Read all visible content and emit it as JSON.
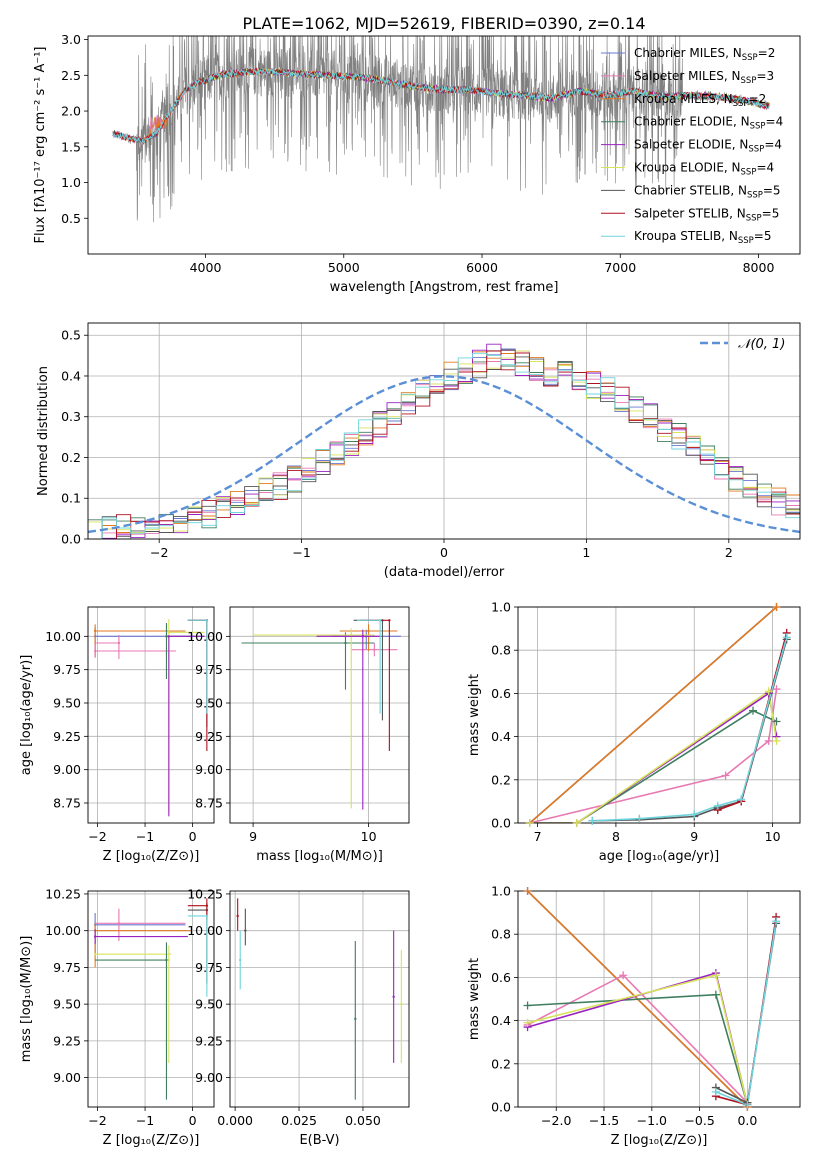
{
  "title": "PLATE=1062, MJD=52619, FIBERID=0390, z=0.14",
  "colors": {
    "chabrier_miles": "#6a78d0",
    "salpeter_miles": "#e879b2",
    "kroupa_miles": "#e07a1f",
    "chabrier_elodie": "#3f7f5f",
    "salpeter_elodie": "#9b22c2",
    "kroupa_elodie": "#d7e35a",
    "chabrier_stelib": "#555555",
    "salpeter_stelib": "#b01020",
    "kroupa_stelib": "#6fd3dc",
    "data": "#808080",
    "normal": "#5b8fd6"
  },
  "chart_data": [
    {
      "id": "spectrum",
      "type": "line",
      "xlabel": "wavelength [Angstrom, rest frame]",
      "ylabel": "Flux [fλ10⁻¹⁷ erg cm⁻² s⁻¹ A⁻¹]",
      "xlim": [
        3150,
        8300
      ],
      "ylim": [
        0,
        3.05
      ],
      "xticks": [
        4000,
        5000,
        6000,
        7000,
        8000
      ],
      "yticks": [
        0.5,
        1.0,
        1.5,
        2.0,
        2.5,
        3.0
      ],
      "legend_position": "top-right",
      "continuum": {
        "x": [
          3350,
          3450,
          3550,
          3650,
          3750,
          3850,
          3950,
          4100,
          4300,
          4500,
          4700,
          4900,
          5100,
          5300,
          5500,
          5700,
          5900,
          6100,
          6300,
          6500,
          6700,
          6900,
          7100,
          7300,
          7500,
          7700,
          7900,
          8050
        ],
        "y": [
          1.68,
          1.62,
          1.58,
          1.7,
          2.0,
          2.28,
          2.4,
          2.5,
          2.55,
          2.55,
          2.52,
          2.5,
          2.48,
          2.42,
          2.35,
          2.3,
          2.3,
          2.25,
          2.22,
          2.18,
          2.28,
          2.22,
          2.28,
          2.2,
          2.22,
          2.2,
          2.15,
          2.08
        ]
      },
      "legend": [
        {
          "label": "Chabrier MILES, N",
          "sub": "SSP",
          "n": "=2",
          "key": "chabrier_miles"
        },
        {
          "label": "Salpeter MILES, N",
          "sub": "SSP",
          "n": "=3",
          "key": "salpeter_miles"
        },
        {
          "label": "Kroupa MILES, N",
          "sub": "SSP",
          "n": "=2",
          "key": "kroupa_miles"
        },
        {
          "label": "Chabrier ELODIE, N",
          "sub": "SSP",
          "n": "=4",
          "key": "chabrier_elodie"
        },
        {
          "label": "Salpeter ELODIE, N",
          "sub": "SSP",
          "n": "=4",
          "key": "salpeter_elodie"
        },
        {
          "label": "Kroupa ELODIE, N",
          "sub": "SSP",
          "n": "=4",
          "key": "kroupa_elodie"
        },
        {
          "label": "Chabrier STELIB, N",
          "sub": "SSP",
          "n": "=5",
          "key": "chabrier_stelib"
        },
        {
          "label": "Salpeter STELIB, N",
          "sub": "SSP",
          "n": "=5",
          "key": "salpeter_stelib"
        },
        {
          "label": "Kroupa STELIB, N",
          "sub": "SSP",
          "n": "=5",
          "key": "kroupa_stelib"
        }
      ]
    },
    {
      "id": "residuals",
      "type": "line",
      "xlabel": "(data-model)/error",
      "ylabel": "Normed distribution",
      "xlim": [
        -2.5,
        2.5
      ],
      "ylim": [
        0,
        0.53
      ],
      "xticks": [
        -2,
        -1,
        0,
        1,
        2
      ],
      "yticks": [
        0.0,
        0.1,
        0.2,
        0.3,
        0.4,
        0.5
      ],
      "grid": true,
      "legend": [
        {
          "label": "𝒩(0, 1)",
          "key": "normal"
        }
      ],
      "legend_position": "top-right",
      "bin_width": 0.1,
      "bin_start": -2.5,
      "histogram": [
        0.015,
        0.02,
        0.025,
        0.03,
        0.035,
        0.04,
        0.045,
        0.05,
        0.06,
        0.075,
        0.09,
        0.1,
        0.115,
        0.13,
        0.15,
        0.17,
        0.19,
        0.21,
        0.235,
        0.26,
        0.28,
        0.305,
        0.33,
        0.355,
        0.38,
        0.4,
        0.415,
        0.43,
        0.445,
        0.45,
        0.43,
        0.42,
        0.41,
        0.405,
        0.4,
        0.38,
        0.365,
        0.34,
        0.32,
        0.3,
        0.27,
        0.25,
        0.22,
        0.2,
        0.175,
        0.15,
        0.13,
        0.11,
        0.09,
        0.075
      ]
    },
    {
      "id": "age_vs_Z",
      "type": "scatter",
      "xlabel": "Z [log₁₀(Z/Z⊙)]",
      "ylabel": "age  [log₁₀(age/yr)]",
      "xlim": [
        -2.2,
        0.45
      ],
      "ylim": [
        8.6,
        10.22
      ],
      "xticks": [
        -2,
        -1,
        0
      ],
      "yticks": [
        8.75,
        9.0,
        9.25,
        9.5,
        9.75,
        10.0
      ],
      "grid": true,
      "errorbars": [
        {
          "key": "chabrier_miles",
          "x": -2.05,
          "y": 10.0,
          "xerr": [
            0.0,
            2.0
          ],
          "yerr": [
            0.15,
            0.07
          ]
        },
        {
          "key": "salpeter_miles",
          "x": -1.55,
          "y": 9.95,
          "xerr": [
            0.5,
            0.0
          ],
          "yerr": [
            0.12,
            0.06
          ]
        },
        {
          "key": "kroupa_miles",
          "x": -2.05,
          "y": 10.04,
          "xerr": [
            0.0,
            1.9
          ],
          "yerr": [
            0.2,
            0.05
          ]
        },
        {
          "key": "salpeter_miles",
          "x": -2.05,
          "y": 9.89,
          "xerr": [
            0.0,
            1.7
          ],
          "yerr": [
            0.05,
            0.05
          ]
        },
        {
          "key": "chabrier_elodie",
          "x": -0.55,
          "y": 10.0,
          "xerr": [
            0.0,
            0.8
          ],
          "yerr": [
            0.32,
            0.1
          ]
        },
        {
          "key": "kroupa_elodie",
          "x": -0.5,
          "y": 10.03,
          "xerr": [
            0.0,
            0.75
          ],
          "yerr": [
            1.35,
            0.1
          ]
        },
        {
          "key": "salpeter_elodie",
          "x": -0.5,
          "y": 10.0,
          "xerr": [
            0.0,
            0.75
          ],
          "yerr": [
            1.35,
            0.0
          ]
        },
        {
          "key": "chabrier_stelib",
          "x": 0.3,
          "y": 10.12,
          "xerr": [
            0.4,
            0.0
          ],
          "yerr": [
            0.8,
            0.0
          ]
        },
        {
          "key": "salpeter_stelib",
          "x": 0.3,
          "y": 10.12,
          "xerr": [
            0.4,
            0.0
          ],
          "yerr": [
            0.98,
            0.0
          ]
        },
        {
          "key": "kroupa_stelib",
          "x": 0.3,
          "y": 10.12,
          "xerr": [
            0.4,
            0.0
          ],
          "yerr": [
            0.7,
            0.0
          ]
        }
      ]
    },
    {
      "id": "age_vs_mass",
      "type": "scatter",
      "xlabel": "mass [log₁₀(M/M⊙)]",
      "ylabel": "",
      "xlim": [
        8.8,
        10.35
      ],
      "ylim": [
        8.6,
        10.22
      ],
      "xticks": [
        9,
        10
      ],
      "yticks": [
        8.75,
        9.0,
        9.25,
        9.5,
        9.75,
        10.0
      ],
      "grid": true,
      "errorbars": [
        {
          "key": "chabrier_miles",
          "x": 9.98,
          "y": 10.0,
          "xerr": [
            0.3,
            0.3
          ],
          "yerr": [
            0.1,
            0.05
          ]
        },
        {
          "key": "salpeter_miles",
          "x": 10.05,
          "y": 9.9,
          "xerr": [
            0.2,
            0.2
          ],
          "yerr": [
            0.05,
            0.05
          ]
        },
        {
          "key": "kroupa_miles",
          "x": 10.0,
          "y": 10.04,
          "xerr": [
            0.25,
            0.25
          ],
          "yerr": [
            0.15,
            0.05
          ]
        },
        {
          "key": "chabrier_elodie",
          "x": 9.8,
          "y": 9.95,
          "xerr": [
            0.9,
            0.25
          ],
          "yerr": [
            0.35,
            0.08
          ]
        },
        {
          "key": "kroupa_elodie",
          "x": 9.85,
          "y": 10.01,
          "xerr": [
            0.85,
            0.2
          ],
          "yerr": [
            1.3,
            0.05
          ]
        },
        {
          "key": "salpeter_elodie",
          "x": 9.95,
          "y": 10.0,
          "xerr": [
            0.4,
            0.15
          ],
          "yerr": [
            1.3,
            0.05
          ]
        },
        {
          "key": "chabrier_stelib",
          "x": 10.12,
          "y": 10.12,
          "xerr": [
            0.25,
            0.0
          ],
          "yerr": [
            0.75,
            0.0
          ]
        },
        {
          "key": "salpeter_stelib",
          "x": 10.18,
          "y": 10.12,
          "xerr": [
            0.25,
            0.0
          ],
          "yerr": [
            0.98,
            0.0
          ]
        },
        {
          "key": "kroupa_stelib",
          "x": 10.1,
          "y": 10.12,
          "xerr": [
            0.2,
            0.0
          ],
          "yerr": [
            0.7,
            0.0
          ]
        }
      ]
    },
    {
      "id": "weight_vs_age",
      "type": "line",
      "xlabel": "age  [log₁₀(age/yr)]",
      "ylabel": "mass weight",
      "xlim": [
        6.75,
        10.35
      ],
      "ylim": [
        0,
        1
      ],
      "xticks": [
        7,
        8,
        9,
        10
      ],
      "yticks": [
        0.0,
        0.2,
        0.4,
        0.6,
        0.8,
        1.0
      ],
      "grid": true,
      "series": [
        {
          "key": "chabrier_miles",
          "x": [
            6.9,
            10.05
          ],
          "y": [
            0.0,
            1.0
          ]
        },
        {
          "key": "kroupa_miles",
          "x": [
            6.9,
            10.05
          ],
          "y": [
            0.0,
            1.0
          ]
        },
        {
          "key": "salpeter_miles",
          "x": [
            6.9,
            9.4,
            9.95,
            10.05
          ],
          "y": [
            0.0,
            0.22,
            0.38,
            0.62
          ]
        },
        {
          "key": "chabrier_elodie",
          "x": [
            6.9,
            7.5,
            9.75,
            10.05
          ],
          "y": [
            0.0,
            0.0,
            0.52,
            0.47
          ]
        },
        {
          "key": "salpeter_elodie",
          "x": [
            6.9,
            7.5,
            9.95,
            10.05
          ],
          "y": [
            0.0,
            0.0,
            0.6,
            0.4
          ]
        },
        {
          "key": "kroupa_elodie",
          "x": [
            6.9,
            7.5,
            9.95,
            10.05
          ],
          "y": [
            0.0,
            0.0,
            0.61,
            0.38
          ]
        },
        {
          "key": "chabrier_stelib",
          "x": [
            7.7,
            8.3,
            9.0,
            9.3,
            9.6,
            10.18
          ],
          "y": [
            0.01,
            0.015,
            0.03,
            0.07,
            0.1,
            0.85
          ]
        },
        {
          "key": "salpeter_stelib",
          "x": [
            9.3,
            9.6,
            10.18
          ],
          "y": [
            0.06,
            0.1,
            0.88
          ]
        },
        {
          "key": "kroupa_stelib",
          "x": [
            7.7,
            8.3,
            9.0,
            9.3,
            9.6,
            10.18
          ],
          "y": [
            0.01,
            0.02,
            0.04,
            0.08,
            0.11,
            0.86
          ]
        }
      ]
    },
    {
      "id": "mass_vs_Z",
      "type": "scatter",
      "xlabel": "Z [log₁₀(Z/Z⊙)]",
      "ylabel": "mass [log₁₀(M/M⊙)]",
      "xlim": [
        -2.2,
        0.45
      ],
      "ylim": [
        8.8,
        10.27
      ],
      "xticks": [
        -2,
        -1,
        0
      ],
      "yticks": [
        9.0,
        9.25,
        9.5,
        9.75,
        10.0,
        10.25
      ],
      "grid": true,
      "errorbars": [
        {
          "key": "chabrier_miles",
          "x": -2.05,
          "y": 10.04,
          "xerr": [
            0.0,
            1.9
          ],
          "yerr": [
            0.2,
            0.08
          ]
        },
        {
          "key": "salpeter_miles",
          "x": -1.55,
          "y": 10.05,
          "xerr": [
            0.5,
            1.4
          ],
          "yerr": [
            0.12,
            0.1
          ]
        },
        {
          "key": "kroupa_miles",
          "x": -2.05,
          "y": 10.0,
          "xerr": [
            0.0,
            2.0
          ],
          "yerr": [
            0.25,
            0.05
          ]
        },
        {
          "key": "salpeter_elodie",
          "x": -2.05,
          "y": 9.96,
          "xerr": [
            0.0,
            1.95
          ],
          "yerr": [
            0.05,
            0.05
          ]
        },
        {
          "key": "kroupa_elodie",
          "x": -2.05,
          "y": 9.84,
          "xerr": [
            0.0,
            1.6
          ],
          "yerr": [
            0.0,
            0.0
          ]
        },
        {
          "key": "chabrier_elodie",
          "x": -0.55,
          "y": 9.8,
          "xerr": [
            1.5,
            0.0
          ],
          "yerr": [
            0.95,
            0.12
          ]
        },
        {
          "key": "kroupa_elodie",
          "x": -0.5,
          "y": 9.8,
          "xerr": [
            0.0,
            0.0
          ],
          "yerr": [
            0.7,
            0.1
          ]
        },
        {
          "key": "chabrier_stelib",
          "x": 0.3,
          "y": 10.14,
          "xerr": [
            0.4,
            0.0
          ],
          "yerr": [
            0.5,
            0.05
          ]
        },
        {
          "key": "salpeter_stelib",
          "x": 0.3,
          "y": 10.17,
          "xerr": [
            0.4,
            0.0
          ],
          "yerr": [
            0.1,
            0.05
          ]
        },
        {
          "key": "kroupa_stelib",
          "x": 0.3,
          "y": 10.1,
          "xerr": [
            0.4,
            0.0
          ],
          "yerr": [
            0.55,
            0.0
          ]
        }
      ]
    },
    {
      "id": "mass_vs_EBV",
      "type": "scatter",
      "xlabel": "E(B-V)",
      "ylabel": "",
      "xlim": [
        -0.002,
        0.068
      ],
      "ylim": [
        8.8,
        10.27
      ],
      "xticks": [
        0.0,
        0.025,
        0.05
      ],
      "xticklabels": [
        "0.000",
        "0.025",
        "0.050"
      ],
      "yticks": [
        9.0,
        9.25,
        9.5,
        9.75,
        10.0,
        10.25
      ],
      "grid": true,
      "errorbars": [
        {
          "key": "salpeter_stelib",
          "x": 0.001,
          "y": 10.1,
          "xerr": [
            0,
            0
          ],
          "yerr": [
            0.1,
            0.12
          ]
        },
        {
          "key": "chabrier_stelib",
          "x": 0.004,
          "y": 10.0,
          "xerr": [
            0,
            0
          ],
          "yerr": [
            0.1,
            0.15
          ]
        },
        {
          "key": "kroupa_stelib",
          "x": 0.002,
          "y": 9.8,
          "xerr": [
            0,
            0
          ],
          "yerr": [
            0.2,
            0.2
          ]
        },
        {
          "key": "chabrier_elodie",
          "x": 0.047,
          "y": 9.4,
          "xerr": [
            0,
            0
          ],
          "yerr": [
            0.55,
            0.53
          ]
        },
        {
          "key": "salpeter_elodie",
          "x": 0.062,
          "y": 9.55,
          "xerr": [
            0,
            0
          ],
          "yerr": [
            0.45,
            0.45
          ]
        },
        {
          "key": "kroupa_elodie",
          "x": 0.065,
          "y": 9.5,
          "xerr": [
            0,
            0
          ],
          "yerr": [
            0.4,
            0.37
          ]
        }
      ]
    },
    {
      "id": "weight_vs_Z",
      "type": "line",
      "xlabel": "Z [log₁₀(Z/Z⊙)]",
      "ylabel": "mass weight",
      "xlim": [
        -2.4,
        0.55
      ],
      "ylim": [
        0,
        1
      ],
      "xticks": [
        -2.0,
        -1.5,
        -1.0,
        -0.5,
        0.0
      ],
      "xticklabels": [
        "−2.0",
        "−1.5",
        "−1.0",
        "−0.5",
        "0.0"
      ],
      "yticks": [
        0.0,
        0.2,
        0.4,
        0.6,
        0.8,
        1.0
      ],
      "grid": true,
      "series": [
        {
          "key": "chabrier_miles",
          "x": [
            -2.3,
            0.0
          ],
          "y": [
            1.0,
            0.0
          ]
        },
        {
          "key": "kroupa_miles",
          "x": [
            -2.3,
            0.0
          ],
          "y": [
            1.0,
            0.0
          ]
        },
        {
          "key": "salpeter_miles",
          "x": [
            -2.3,
            -1.3,
            0.0
          ],
          "y": [
            0.38,
            0.61,
            0.02
          ]
        },
        {
          "key": "chabrier_elodie",
          "x": [
            -2.3,
            -0.33,
            0.0
          ],
          "y": [
            0.47,
            0.52,
            0.01
          ]
        },
        {
          "key": "salpeter_elodie",
          "x": [
            -2.3,
            -0.33,
            0.0
          ],
          "y": [
            0.37,
            0.62,
            0.01
          ]
        },
        {
          "key": "kroupa_elodie",
          "x": [
            -2.3,
            -0.33,
            0.0
          ],
          "y": [
            0.39,
            0.61,
            0.01
          ]
        },
        {
          "key": "chabrier_stelib",
          "x": [
            -0.33,
            0.0,
            0.3
          ],
          "y": [
            0.09,
            0.02,
            0.85
          ]
        },
        {
          "key": "salpeter_stelib",
          "x": [
            -0.33,
            0.0,
            0.3
          ],
          "y": [
            0.05,
            0.01,
            0.88
          ]
        },
        {
          "key": "kroupa_stelib",
          "x": [
            -0.33,
            0.0,
            0.3
          ],
          "y": [
            0.07,
            0.01,
            0.86
          ]
        }
      ]
    }
  ]
}
